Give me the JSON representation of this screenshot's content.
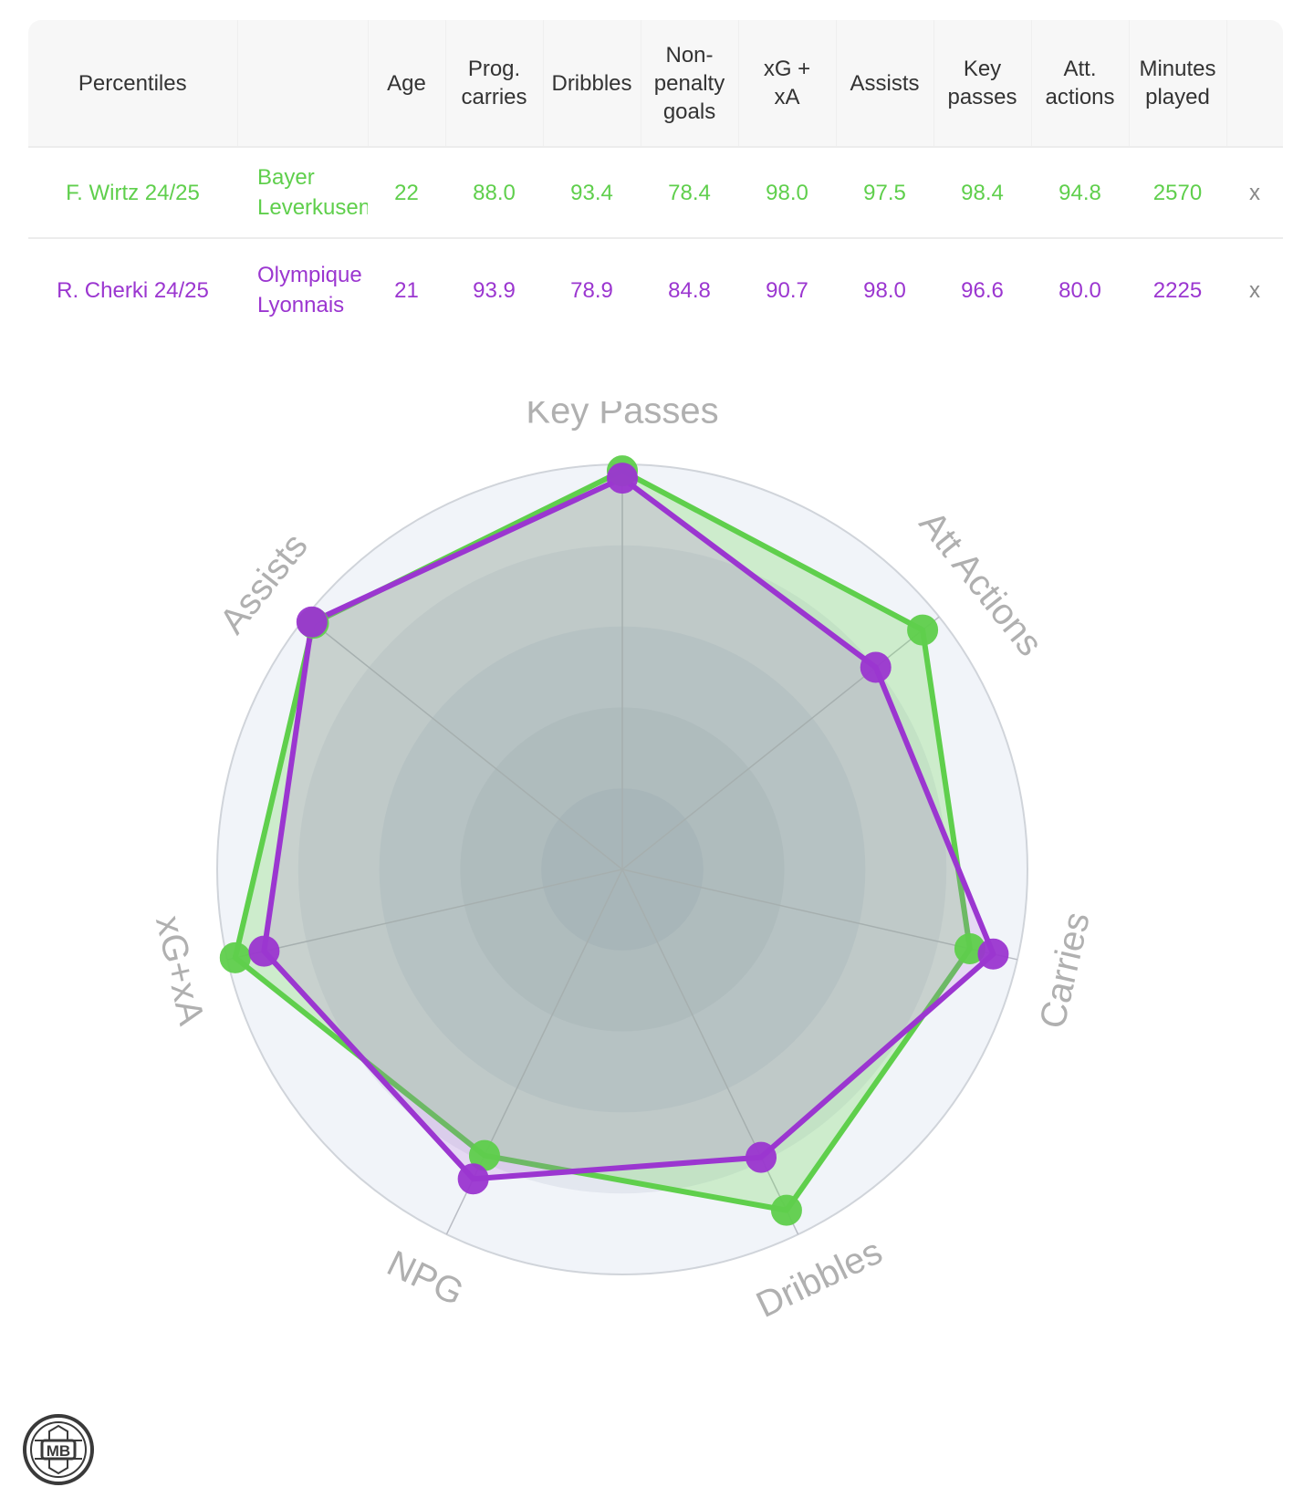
{
  "table": {
    "headers": [
      "Percentiles",
      "",
      "Age",
      "Prog.\ncarries",
      "Dribbles",
      "Non-\npenalty\ngoals",
      "xG +\nxA",
      "Assists",
      "Key\npasses",
      "Att.\nactions",
      "Minutes\nplayed",
      ""
    ],
    "rows": [
      {
        "player": "F. Wirtz 24/25",
        "team": "Bayer Leverkusen",
        "values": [
          "22",
          "88.0",
          "93.4",
          "78.4",
          "98.0",
          "97.5",
          "98.4",
          "94.8",
          "2570"
        ],
        "remove": "x",
        "color": "#5fcf4c"
      },
      {
        "player": "R. Cherki 24/25",
        "team": "Olympique Lyonnais",
        "values": [
          "21",
          "93.9",
          "78.9",
          "84.8",
          "90.7",
          "98.0",
          "96.6",
          "80.0",
          "2225"
        ],
        "remove": "x",
        "color": "#9b36d0"
      }
    ]
  },
  "chart_data": {
    "type": "radar",
    "axes": [
      "Key Passes",
      "Att Actions",
      "Carries",
      "Dribbles",
      "NPG",
      "xG+xA",
      "Assists"
    ],
    "range": [
      0,
      100
    ],
    "series": [
      {
        "name": "F. Wirtz 24/25",
        "color": "#5fcf4c",
        "values": [
          98.4,
          94.8,
          88.0,
          93.4,
          78.4,
          98.0,
          97.5
        ]
      },
      {
        "name": "R. Cherki 24/25",
        "color": "#9b36d0",
        "values": [
          96.6,
          80.0,
          93.9,
          78.9,
          84.8,
          90.7,
          98.0
        ]
      }
    ]
  },
  "logo": {
    "text": "MB"
  }
}
